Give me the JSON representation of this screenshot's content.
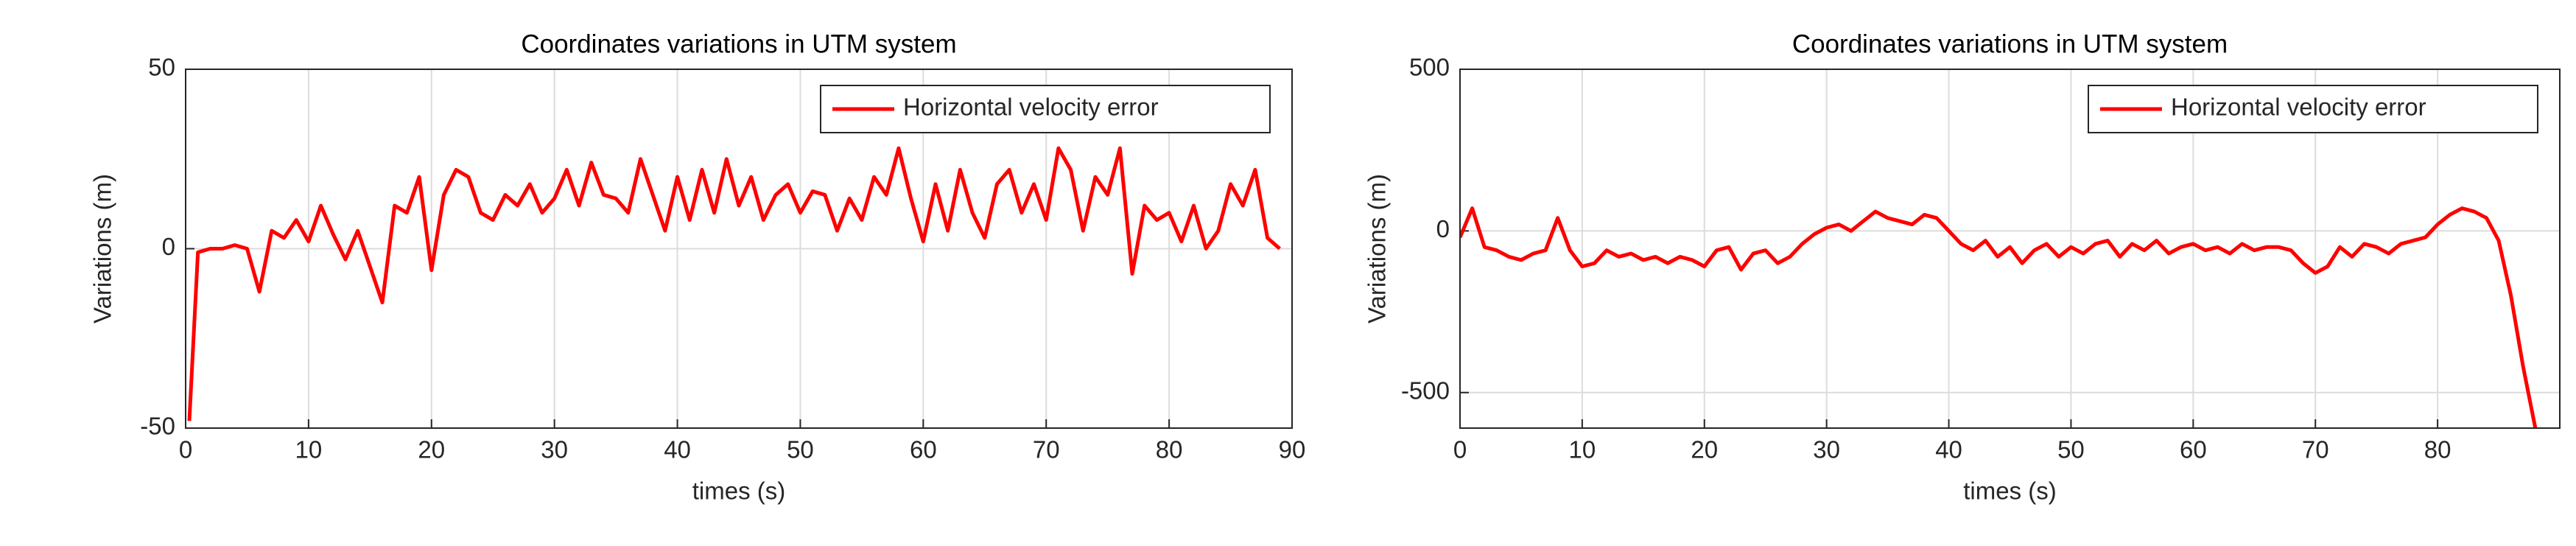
{
  "chart_data": [
    {
      "type": "line",
      "title": "Coordinates variations in UTM system",
      "x_label": "times (s)",
      "y_label": "Variations (m)",
      "x": [
        0.3,
        1,
        2,
        3,
        4,
        5,
        6,
        7,
        8,
        9,
        10,
        11,
        12,
        13,
        14,
        15,
        16,
        17,
        18,
        19,
        20,
        21,
        22,
        23,
        24,
        25,
        26,
        27,
        28,
        29,
        30,
        31,
        32,
        33,
        34,
        35,
        36,
        37,
        38,
        39,
        40,
        41,
        42,
        43,
        44,
        45,
        46,
        47,
        48,
        49,
        50,
        51,
        52,
        53,
        54,
        55,
        56,
        57,
        58,
        59,
        60,
        61,
        62,
        63,
        64,
        65,
        66,
        67,
        68,
        69,
        70,
        71,
        72,
        73,
        74,
        75,
        76,
        77,
        78,
        79,
        80,
        81,
        82,
        83,
        84,
        85,
        86,
        87,
        88,
        89
      ],
      "series": [
        {
          "name": "Horizontal velocity error",
          "color": "#ff0000",
          "values": [
            -48,
            -1,
            0,
            0,
            1,
            0,
            -12,
            5,
            3,
            8,
            2,
            12,
            4,
            -3,
            5,
            -5,
            -15,
            12,
            10,
            20,
            -6,
            15,
            22,
            20,
            10,
            8,
            15,
            12,
            18,
            10,
            14,
            22,
            12,
            24,
            15,
            14,
            10,
            25,
            15,
            5,
            20,
            8,
            22,
            10,
            25,
            12,
            20,
            8,
            15,
            18,
            10,
            16,
            15,
            5,
            14,
            8,
            20,
            15,
            28,
            14,
            2,
            18,
            5,
            22,
            10,
            3,
            18,
            22,
            10,
            18,
            8,
            28,
            22,
            5,
            20,
            15,
            28,
            -7,
            12,
            8,
            10,
            2,
            12,
            0,
            5,
            18,
            12,
            22,
            3,
            0
          ]
        }
      ],
      "xlim": [
        0,
        90
      ],
      "xticks": [
        0,
        10,
        20,
        30,
        40,
        50,
        60,
        70,
        80,
        90
      ],
      "ylim": [
        -50,
        50
      ],
      "yticks": [
        -50,
        0,
        50
      ],
      "grid": true,
      "legend": "upper right"
    },
    {
      "type": "line",
      "title": "Coordinates variations in UTM system",
      "x_label": "times (s)",
      "y_label": "Variations (m)",
      "x": [
        0,
        1,
        2,
        3,
        4,
        5,
        6,
        7,
        8,
        9,
        10,
        11,
        12,
        13,
        14,
        15,
        16,
        17,
        18,
        19,
        20,
        21,
        22,
        23,
        24,
        25,
        26,
        27,
        28,
        29,
        30,
        31,
        32,
        33,
        34,
        35,
        36,
        37,
        38,
        39,
        40,
        41,
        42,
        43,
        44,
        45,
        46,
        47,
        48,
        49,
        50,
        51,
        52,
        53,
        54,
        55,
        56,
        57,
        58,
        59,
        60,
        61,
        62,
        63,
        64,
        65,
        66,
        67,
        68,
        69,
        70,
        71,
        72,
        73,
        74,
        75,
        76,
        77,
        78,
        79,
        80,
        81,
        82,
        83,
        84,
        85,
        86,
        87,
        88
      ],
      "series": [
        {
          "name": "Horizontal velocity error",
          "color": "#ff0000",
          "values": [
            -20,
            70,
            -50,
            -60,
            -80,
            -90,
            -70,
            -60,
            40,
            -60,
            -110,
            -100,
            -60,
            -80,
            -70,
            -90,
            -80,
            -100,
            -80,
            -90,
            -110,
            -60,
            -50,
            -120,
            -70,
            -60,
            -100,
            -80,
            -40,
            -10,
            10,
            20,
            0,
            30,
            60,
            40,
            30,
            20,
            50,
            40,
            0,
            -40,
            -60,
            -30,
            -80,
            -50,
            -100,
            -60,
            -40,
            -80,
            -50,
            -70,
            -40,
            -30,
            -80,
            -40,
            -60,
            -30,
            -70,
            -50,
            -40,
            -60,
            -50,
            -70,
            -40,
            -60,
            -50,
            -50,
            -60,
            -100,
            -130,
            -110,
            -50,
            -80,
            -40,
            -50,
            -70,
            -40,
            -30,
            -20,
            20,
            50,
            70,
            60,
            40,
            -30,
            -200,
            -420,
            -610
          ]
        }
      ],
      "xlim": [
        0,
        90
      ],
      "xticks": [
        0,
        10,
        20,
        30,
        40,
        50,
        60,
        70,
        80
      ],
      "ylim": [
        -610,
        500
      ],
      "yticks": [
        -500,
        0,
        500
      ],
      "grid": true,
      "legend": "upper right"
    }
  ]
}
